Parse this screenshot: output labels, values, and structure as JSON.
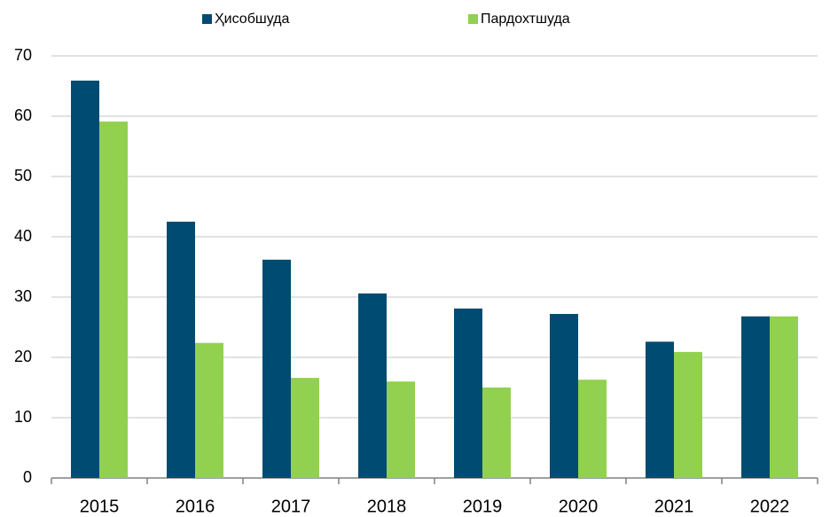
{
  "chart_data": {
    "type": "bar",
    "categories": [
      "2015",
      "2016",
      "2017",
      "2018",
      "2019",
      "2020",
      "2021",
      "2022"
    ],
    "series": [
      {
        "name": "Ҳисобшуда",
        "color": "#004b71",
        "values": [
          65.9,
          42.5,
          36.2,
          30.6,
          28.1,
          27.2,
          22.6,
          26.8
        ]
      },
      {
        "name": "Пардохтшуда",
        "color": "#92d050",
        "values": [
          59.1,
          22.4,
          16.6,
          16.0,
          15.0,
          16.3,
          20.9,
          26.8
        ]
      }
    ],
    "ylim": [
      0,
      70
    ],
    "yticks": [
      0,
      10,
      20,
      30,
      40,
      50,
      60,
      70
    ],
    "grid": true,
    "legend": "top"
  }
}
